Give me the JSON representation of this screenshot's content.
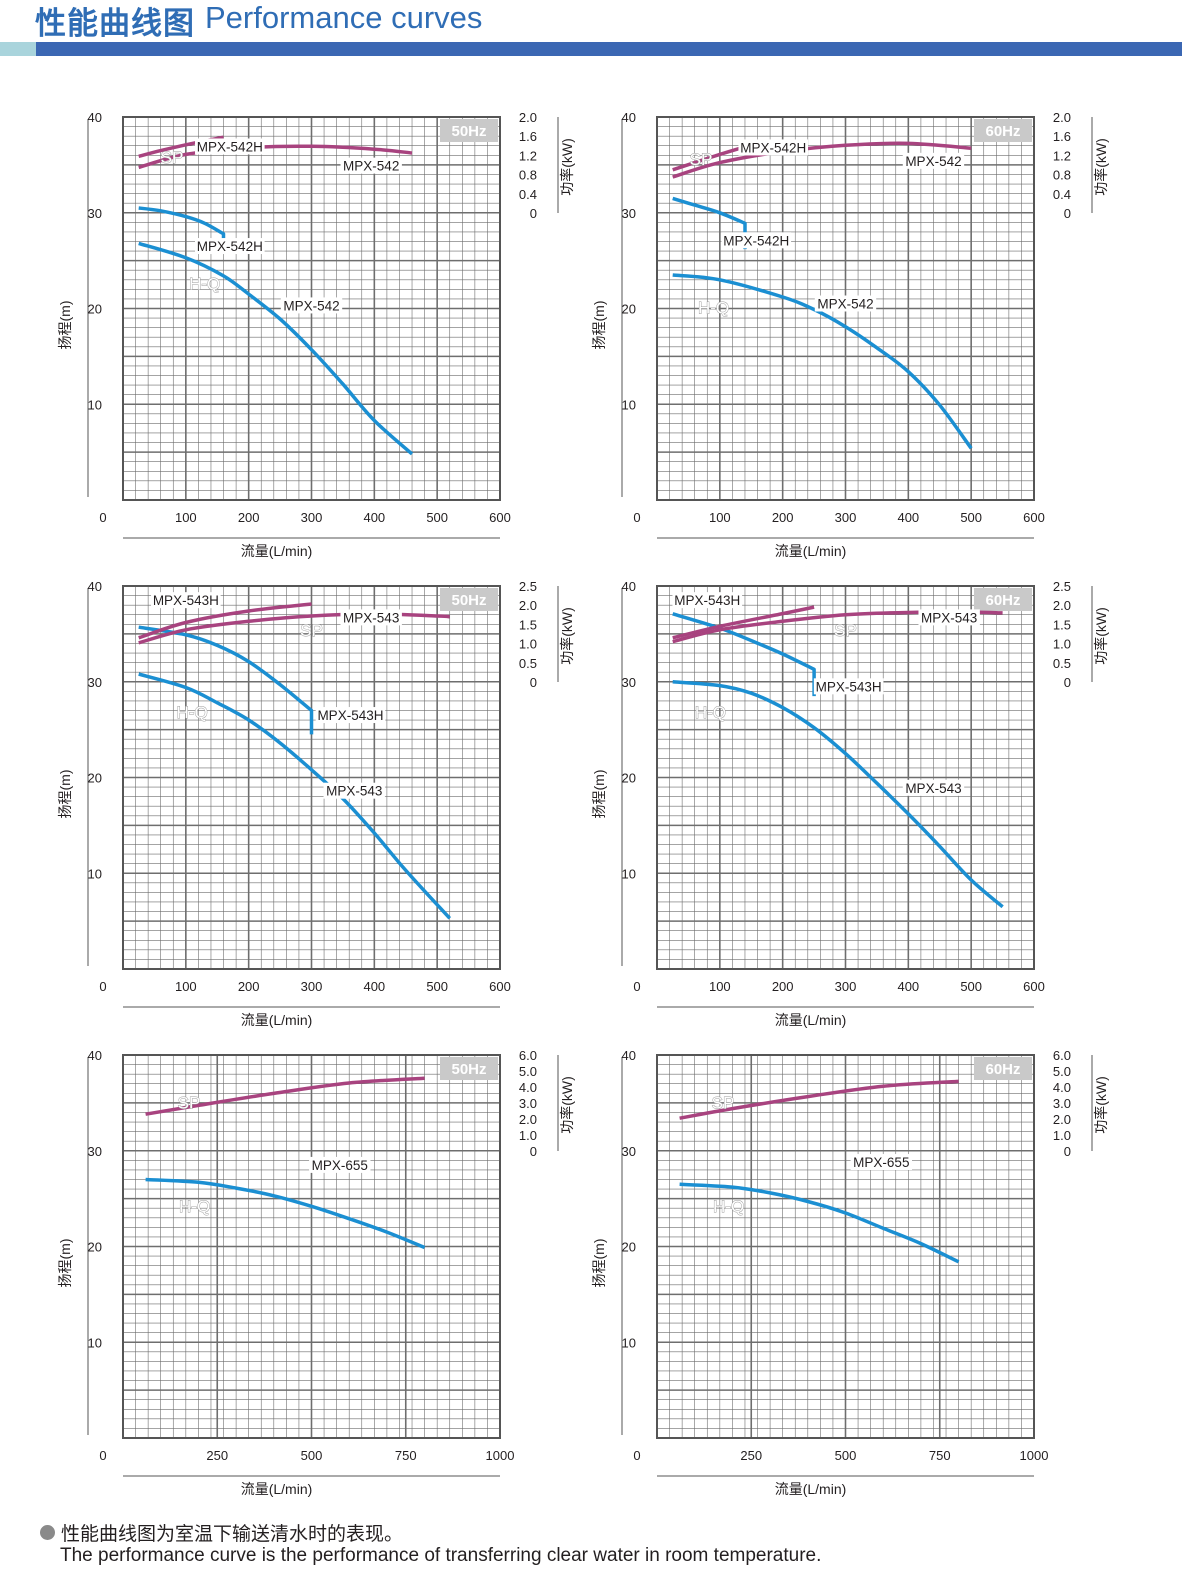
{
  "header": {
    "title_cn": "性能曲线图",
    "title_en": "Performance curves",
    "accent": "#3b67b3",
    "accent_light": "#a9d4dc",
    "title_color": "#2f6db5"
  },
  "colors": {
    "hq": "#1b8fd2",
    "sp": "#a8437f",
    "grid": "#6e6e6e",
    "badge_bg": "#c9c9c9",
    "badge_text": "#ffffff"
  },
  "chart_data": [
    {
      "type": "line",
      "freq": "50Hz",
      "xlabel": "流量(L/min)",
      "ylabel": "扬程(m)",
      "y2label": "功率(kW)",
      "xlim": [
        0,
        600
      ],
      "ylim": [
        0,
        40
      ],
      "x_ticks": [
        "0",
        "100",
        "200",
        "300",
        "400",
        "500",
        "600"
      ],
      "x_tick_values": [
        0,
        100,
        200,
        300,
        400,
        500,
        600
      ],
      "y_ticks": [
        "10",
        "20",
        "30",
        "40"
      ],
      "y_tick_values": [
        10,
        20,
        30,
        40
      ],
      "power_ticks": [
        "0",
        "0.4",
        "0.8",
        "1.2",
        "1.6",
        "2.0"
      ],
      "power_range": [
        0,
        2.0
      ],
      "hq_label": "H-Q",
      "sp_label": "SP",
      "series": [
        {
          "name": "MPX-542H",
          "kind": "HQ",
          "x": [
            25,
            60,
            100,
            130,
            160
          ],
          "y": [
            30.5,
            30.2,
            29.6,
            28.9,
            27.8
          ],
          "vertical_end": 26.0
        },
        {
          "name": "MPX-542",
          "kind": "HQ",
          "x": [
            25,
            100,
            160,
            200,
            250,
            300,
            350,
            400,
            460
          ],
          "y": [
            26.8,
            25.3,
            23.4,
            21.5,
            18.9,
            15.7,
            12.1,
            8.3,
            4.8
          ]
        },
        {
          "name": "MPX-542H",
          "kind": "SP",
          "x": [
            25,
            60,
            100,
            160
          ],
          "y": [
            1.18,
            1.3,
            1.42,
            1.58
          ]
        },
        {
          "name": "MPX-542",
          "kind": "SP",
          "x": [
            25,
            100,
            200,
            300,
            400,
            460
          ],
          "y": [
            0.95,
            1.22,
            1.36,
            1.39,
            1.33,
            1.25
          ]
        }
      ],
      "labels": [
        {
          "text": "MPX-542H",
          "x": 170,
          "y": 36.4
        },
        {
          "text": "MPX-542",
          "x": 395,
          "y": 34.4
        },
        {
          "text": "SP",
          "x": 78,
          "y": 35.2
        },
        {
          "text": "MPX-542H",
          "x": 170,
          "y": 26.0
        },
        {
          "text": "H-Q",
          "x": 130,
          "y": 22.0
        },
        {
          "text": "MPX-542",
          "x": 300,
          "y": 19.8
        }
      ]
    },
    {
      "type": "line",
      "freq": "60Hz",
      "xlabel": "流量(L/min)",
      "ylabel": "扬程(m)",
      "y2label": "功率(kW)",
      "xlim": [
        0,
        600
      ],
      "ylim": [
        0,
        40
      ],
      "x_ticks": [
        "0",
        "100",
        "200",
        "300",
        "400",
        "500",
        "600"
      ],
      "x_tick_values": [
        0,
        100,
        200,
        300,
        400,
        500,
        600
      ],
      "y_ticks": [
        "10",
        "20",
        "30",
        "40"
      ],
      "y_tick_values": [
        10,
        20,
        30,
        40
      ],
      "power_ticks": [
        "0",
        "0.4",
        "0.8",
        "1.2",
        "1.6",
        "2.0"
      ],
      "power_range": [
        0,
        2.0
      ],
      "hq_label": "H-Q",
      "sp_label": "SP",
      "series": [
        {
          "name": "MPX-542H",
          "kind": "HQ",
          "x": [
            25,
            60,
            100,
            140
          ],
          "y": [
            31.5,
            30.8,
            30.0,
            28.9
          ],
          "vertical_end": 26.2
        },
        {
          "name": "MPX-542",
          "kind": "HQ",
          "x": [
            25,
            100,
            200,
            250,
            300,
            350,
            400,
            450,
            500
          ],
          "y": [
            23.5,
            23.0,
            21.2,
            19.9,
            18.1,
            15.9,
            13.4,
            9.9,
            5.4
          ]
        },
        {
          "name": "MPX-542H",
          "kind": "SP",
          "x": [
            25,
            60,
            100,
            140
          ],
          "y": [
            0.9,
            1.05,
            1.22,
            1.38
          ]
        },
        {
          "name": "MPX-542",
          "kind": "SP",
          "x": [
            25,
            100,
            200,
            300,
            400,
            500
          ],
          "y": [
            0.75,
            1.05,
            1.28,
            1.41,
            1.45,
            1.35
          ]
        }
      ],
      "labels": [
        {
          "text": "MPX-542H",
          "x": 185,
          "y": 36.3
        },
        {
          "text": "MPX-542",
          "x": 440,
          "y": 34.9
        },
        {
          "text": "SP",
          "x": 70,
          "y": 35.0
        },
        {
          "text": "MPX-542H",
          "x": 158,
          "y": 26.6
        },
        {
          "text": "H-Q",
          "x": 90,
          "y": 19.5
        },
        {
          "text": "MPX-542",
          "x": 300,
          "y": 20.0
        }
      ]
    },
    {
      "type": "line",
      "freq": "50Hz",
      "xlabel": "流量(L/min)",
      "ylabel": "扬程(m)",
      "y2label": "功率(kW)",
      "xlim": [
        0,
        600
      ],
      "ylim": [
        0,
        40
      ],
      "x_ticks": [
        "0",
        "100",
        "200",
        "300",
        "400",
        "500",
        "600"
      ],
      "x_tick_values": [
        0,
        100,
        200,
        300,
        400,
        500,
        600
      ],
      "y_ticks": [
        "10",
        "20",
        "30",
        "40"
      ],
      "y_tick_values": [
        10,
        20,
        30,
        40
      ],
      "power_ticks": [
        "0",
        "0.5",
        "1.0",
        "1.5",
        "2.0",
        "2.5"
      ],
      "power_range": [
        0,
        2.5
      ],
      "hq_label": "H-Q",
      "sp_label": "SP",
      "series": [
        {
          "name": "MPX-543H",
          "kind": "HQ",
          "x": [
            25,
            100,
            150,
            200,
            250,
            300
          ],
          "y": [
            35.7,
            34.9,
            33.8,
            32.1,
            29.7,
            27.0
          ],
          "vertical_end": 24.5
        },
        {
          "name": "MPX-543",
          "kind": "HQ",
          "x": [
            25,
            100,
            150,
            200,
            250,
            300,
            350,
            400,
            450,
            520
          ],
          "y": [
            30.8,
            29.4,
            27.8,
            26.0,
            23.6,
            20.8,
            17.8,
            14.2,
            10.3,
            5.3
          ]
        },
        {
          "name": "MPX-543H",
          "kind": "SP",
          "x": [
            25,
            100,
            200,
            300
          ],
          "y": [
            1.15,
            1.55,
            1.85,
            2.03
          ]
        },
        {
          "name": "MPX-543",
          "kind": "SP",
          "x": [
            25,
            100,
            200,
            300,
            400,
            500,
            520
          ],
          "y": [
            1.02,
            1.36,
            1.58,
            1.72,
            1.77,
            1.72,
            1.7
          ]
        }
      ],
      "labels": [
        {
          "text": "MPX-543H",
          "x": 100,
          "y": 38.0
        },
        {
          "text": "MPX-543",
          "x": 395,
          "y": 36.2
        },
        {
          "text": "SP",
          "x": 300,
          "y": 34.8
        },
        {
          "text": "MPX-543H",
          "x": 362,
          "y": 26.0
        },
        {
          "text": "H-Q",
          "x": 110,
          "y": 26.2
        },
        {
          "text": "MPX-543",
          "x": 368,
          "y": 18.1
        }
      ]
    },
    {
      "type": "line",
      "freq": "60Hz",
      "xlabel": "流量(L/min)",
      "ylabel": "扬程(m)",
      "y2label": "功率(kW)",
      "xlim": [
        0,
        600
      ],
      "ylim": [
        0,
        40
      ],
      "x_ticks": [
        "0",
        "100",
        "200",
        "300",
        "400",
        "500",
        "600"
      ],
      "x_tick_values": [
        0,
        100,
        200,
        300,
        400,
        500,
        600
      ],
      "y_ticks": [
        "10",
        "20",
        "30",
        "40"
      ],
      "y_tick_values": [
        10,
        20,
        30,
        40
      ],
      "power_ticks": [
        "0",
        "0.5",
        "1.0",
        "1.5",
        "2.0",
        "2.5"
      ],
      "power_range": [
        0,
        2.5
      ],
      "hq_label": "H-Q",
      "sp_label": "SP",
      "series": [
        {
          "name": "MPX-543H",
          "kind": "HQ",
          "x": [
            25,
            100,
            150,
            200,
            250
          ],
          "y": [
            37.1,
            35.6,
            34.3,
            32.9,
            31.3
          ],
          "vertical_end": 28.5
        },
        {
          "name": "MPX-543",
          "kind": "HQ",
          "x": [
            25,
            100,
            150,
            200,
            250,
            300,
            350,
            400,
            450,
            500,
            550
          ],
          "y": [
            30.0,
            29.6,
            28.8,
            27.3,
            25.2,
            22.5,
            19.4,
            16.2,
            12.8,
            9.3,
            6.5
          ]
        },
        {
          "name": "MPX-543H",
          "kind": "SP",
          "x": [
            25,
            100,
            200,
            250
          ],
          "y": [
            1.15,
            1.45,
            1.78,
            1.95
          ]
        },
        {
          "name": "MPX-543",
          "kind": "SP",
          "x": [
            25,
            100,
            200,
            300,
            400,
            500,
            550
          ],
          "y": [
            1.05,
            1.36,
            1.58,
            1.75,
            1.81,
            1.82,
            1.8
          ]
        }
      ],
      "labels": [
        {
          "text": "MPX-543H",
          "x": 80,
          "y": 38.0
        },
        {
          "text": "MPX-543",
          "x": 465,
          "y": 36.2
        },
        {
          "text": "SP",
          "x": 300,
          "y": 34.8
        },
        {
          "text": "MPX-543H",
          "x": 305,
          "y": 29.0
        },
        {
          "text": "H-Q",
          "x": 85,
          "y": 26.2
        },
        {
          "text": "MPX-543",
          "x": 440,
          "y": 18.4
        }
      ]
    },
    {
      "type": "line",
      "freq": "50Hz",
      "xlabel": "流量(L/min)",
      "ylabel": "扬程(m)",
      "y2label": "功率(kW)",
      "xlim": [
        0,
        1000
      ],
      "ylim": [
        0,
        40
      ],
      "x_ticks": [
        "0",
        "250",
        "500",
        "750",
        "1000"
      ],
      "x_tick_values": [
        0,
        250,
        500,
        750,
        1000
      ],
      "y_ticks": [
        "10",
        "20",
        "30",
        "40"
      ],
      "y_tick_values": [
        10,
        20,
        30,
        40
      ],
      "power_ticks": [
        "0",
        "1.0",
        "2.0",
        "3.0",
        "4.0",
        "5.0",
        "6.0"
      ],
      "power_range": [
        0,
        6.0
      ],
      "hq_label": "H-Q",
      "sp_label": "SP",
      "series": [
        {
          "name": "MPX-655",
          "kind": "HQ",
          "x": [
            60,
            200,
            300,
            400,
            500,
            600,
            700,
            800
          ],
          "y": [
            27.0,
            26.7,
            26.1,
            25.3,
            24.2,
            22.9,
            21.5,
            19.9
          ]
        },
        {
          "name": "MPX-655",
          "kind": "SP",
          "x": [
            60,
            200,
            400,
            600,
            800
          ],
          "y": [
            2.3,
            2.85,
            3.6,
            4.25,
            4.55
          ]
        }
      ],
      "labels": [
        {
          "text": "SP",
          "x": 175,
          "y": 34.4
        },
        {
          "text": "MPX-655",
          "x": 575,
          "y": 28.0
        },
        {
          "text": "H-Q",
          "x": 190,
          "y": 23.6
        }
      ]
    },
    {
      "type": "line",
      "freq": "60Hz",
      "xlabel": "流量(L/min)",
      "ylabel": "扬程(m)",
      "y2label": "功率(kW)",
      "xlim": [
        0,
        1000
      ],
      "ylim": [
        0,
        40
      ],
      "x_ticks": [
        "0",
        "250",
        "500",
        "750",
        "1000"
      ],
      "x_tick_values": [
        0,
        250,
        500,
        750,
        1000
      ],
      "y_ticks": [
        "10",
        "20",
        "30",
        "40"
      ],
      "y_tick_values": [
        10,
        20,
        30,
        40
      ],
      "power_ticks": [
        "0",
        "1.0",
        "2.0",
        "3.0",
        "4.0",
        "5.0",
        "6.0"
      ],
      "power_range": [
        0,
        6.0
      ],
      "hq_label": "H-Q",
      "sp_label": "SP",
      "series": [
        {
          "name": "MPX-655",
          "kind": "HQ",
          "x": [
            60,
            200,
            300,
            400,
            500,
            600,
            700,
            800
          ],
          "y": [
            26.5,
            26.2,
            25.6,
            24.7,
            23.5,
            21.9,
            20.3,
            18.4
          ]
        },
        {
          "name": "MPX-655",
          "kind": "SP",
          "x": [
            60,
            200,
            400,
            600,
            800
          ],
          "y": [
            2.05,
            2.65,
            3.4,
            4.05,
            4.35
          ]
        }
      ],
      "labels": [
        {
          "text": "SP",
          "x": 175,
          "y": 34.4
        },
        {
          "text": "MPX-655",
          "x": 595,
          "y": 28.3
        },
        {
          "text": "H-Q",
          "x": 190,
          "y": 23.6
        }
      ]
    }
  ],
  "footer": {
    "note_cn": "性能曲线图为室温下输送清水时的表现。",
    "note_en": "The performance curve is the performance of transferring clear water in room temperature."
  }
}
